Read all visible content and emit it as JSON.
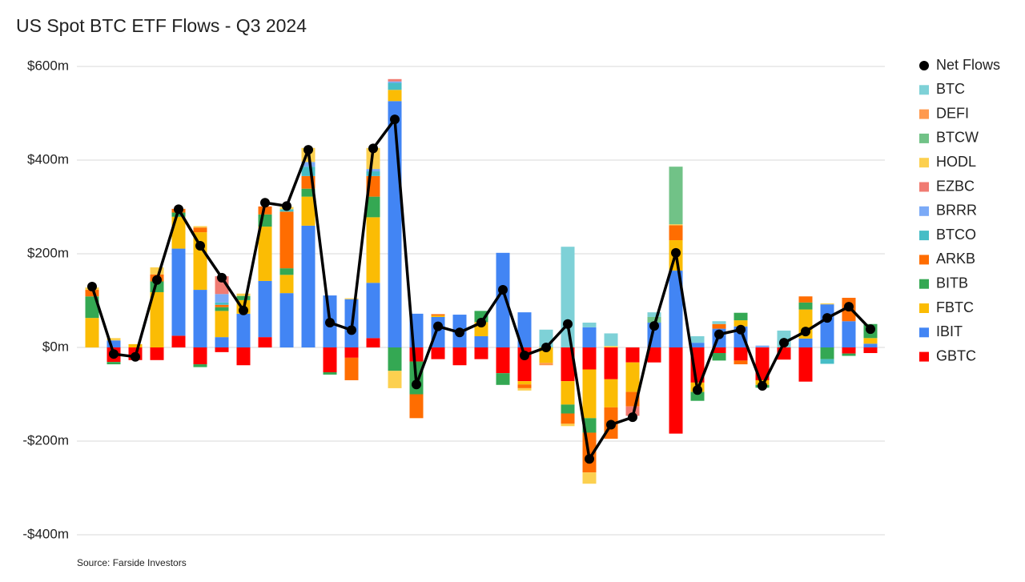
{
  "chart_data": {
    "type": "bar",
    "stacked": true,
    "title": "US Spot BTC ETF Flows - Q3 2024",
    "source": "Source: Farside Investors",
    "categories": [
      null,
      null,
      null,
      null,
      null,
      null,
      null,
      null,
      null,
      null,
      null,
      null,
      null,
      null,
      null,
      null,
      null,
      null,
      null,
      null,
      null,
      null,
      null,
      null,
      null,
      null,
      null,
      null,
      null,
      null,
      null,
      null,
      null,
      null,
      null,
      null,
      null
    ],
    "ylim": [
      -400,
      600
    ],
    "yticks": [
      {
        "value": 600,
        "label": "$600m"
      },
      {
        "value": 400,
        "label": "$400m"
      },
      {
        "value": 200,
        "label": "$200m"
      },
      {
        "value": 0,
        "label": "$0m"
      },
      {
        "value": -200,
        "label": "-$200m"
      },
      {
        "value": -400,
        "label": "-$400m"
      }
    ],
    "grid": true,
    "legend": "right",
    "series": [
      {
        "name": "GBTC",
        "color": "#ff0000",
        "values": [
          0,
          -31,
          -27,
          -27,
          25,
          -36,
          -10,
          -38,
          22,
          0,
          0,
          -53,
          -22,
          20,
          0,
          -30,
          -25,
          -38,
          -25,
          -55,
          -72,
          0,
          -72,
          -47,
          -68,
          -32,
          -32,
          -184,
          -75,
          -12,
          -28,
          -70,
          -26,
          -73,
          0,
          -13,
          -12
        ]
      },
      {
        "name": "IBIT",
        "color": "#4285f4",
        "values": [
          0,
          15,
          0,
          0,
          186,
          123,
          22,
          72,
          120,
          116,
          260,
          111,
          103,
          118,
          526,
          72,
          65,
          70,
          24,
          202,
          75,
          0,
          0,
          43,
          0,
          0,
          53,
          164,
          10,
          40,
          45,
          0,
          0,
          19,
          92,
          56,
          8
        ]
      },
      {
        "name": "FBTC",
        "color": "#fbbc04",
        "values": [
          63,
          0,
          7,
          118,
          68,
          123,
          56,
          29,
          116,
          39,
          62,
          0,
          0,
          140,
          24,
          0,
          3,
          0,
          30,
          0,
          -7,
          -33,
          -50,
          -104,
          -60,
          -63,
          0,
          65,
          -20,
          0,
          13,
          -10,
          0,
          62,
          0,
          0,
          12
        ]
      },
      {
        "name": "BITB",
        "color": "#34a853",
        "values": [
          46,
          -5,
          0,
          23,
          9,
          -6,
          8,
          9,
          26,
          14,
          17,
          -5,
          0,
          44,
          -50,
          -70,
          0,
          0,
          24,
          -25,
          0,
          0,
          -19,
          -31,
          0,
          0,
          0,
          0,
          -19,
          -16,
          16,
          -6,
          0,
          15,
          -25,
          -5,
          30
        ]
      },
      {
        "name": "ARKB",
        "color": "#ff6d01",
        "values": [
          14,
          0,
          0,
          15,
          8,
          10,
          5,
          0,
          17,
          121,
          27,
          0,
          -48,
          44,
          0,
          -51,
          3,
          0,
          0,
          0,
          -8,
          0,
          -22,
          -85,
          -67,
          -31,
          0,
          32,
          0,
          10,
          -8,
          0,
          0,
          13,
          0,
          50,
          0
        ]
      },
      {
        "name": "BTCO",
        "color": "#46bdc6",
        "values": [
          0,
          0,
          0,
          0,
          0,
          0,
          5,
          0,
          0,
          5,
          20,
          0,
          0,
          10,
          15,
          0,
          0,
          0,
          0,
          0,
          0,
          0,
          0,
          0,
          0,
          0,
          0,
          0,
          0,
          0,
          0,
          0,
          0,
          0,
          -10,
          0,
          0
        ]
      },
      {
        "name": "BRRR",
        "color": "#7baaf7",
        "values": [
          0,
          0,
          0,
          0,
          0,
          0,
          18,
          0,
          0,
          0,
          10,
          0,
          0,
          5,
          3,
          0,
          0,
          0,
          0,
          0,
          0,
          0,
          0,
          0,
          0,
          0,
          0,
          0,
          0,
          0,
          0,
          4,
          0,
          0,
          0,
          0,
          0
        ]
      },
      {
        "name": "EZBC",
        "color": "#f07b72",
        "values": [
          0,
          0,
          0,
          0,
          0,
          0,
          38,
          0,
          0,
          0,
          0,
          0,
          0,
          0,
          5,
          0,
          0,
          0,
          0,
          0,
          0,
          0,
          0,
          0,
          0,
          -20,
          0,
          0,
          0,
          0,
          0,
          0,
          0,
          0,
          0,
          0,
          0
        ]
      },
      {
        "name": "HODL",
        "color": "#fcd04f",
        "values": [
          5,
          5,
          0,
          15,
          0,
          3,
          0,
          5,
          0,
          5,
          30,
          0,
          2,
          45,
          -37,
          0,
          0,
          0,
          0,
          0,
          -5,
          0,
          -5,
          -24,
          3,
          0,
          0,
          2,
          0,
          0,
          0,
          0,
          0,
          0,
          2,
          0,
          0
        ]
      },
      {
        "name": "BTCW",
        "color": "#71c287",
        "values": [
          0,
          0,
          0,
          0,
          0,
          0,
          0,
          0,
          0,
          0,
          0,
          0,
          0,
          0,
          0,
          0,
          0,
          0,
          0,
          0,
          0,
          0,
          0,
          0,
          0,
          0,
          12,
          123,
          0,
          0,
          0,
          0,
          0,
          0,
          0,
          0,
          0
        ]
      },
      {
        "name": "DEFI",
        "color": "#ff994d",
        "values": [
          0,
          0,
          0,
          0,
          0,
          0,
          0,
          0,
          0,
          0,
          0,
          0,
          0,
          0,
          0,
          0,
          0,
          0,
          0,
          0,
          0,
          -5,
          0,
          0,
          0,
          0,
          0,
          0,
          0,
          0,
          0,
          0,
          0,
          0,
          0,
          0,
          0
        ]
      },
      {
        "name": "BTC",
        "color": "#7ed1d7",
        "values": [
          0,
          0,
          0,
          0,
          0,
          0,
          0,
          0,
          0,
          0,
          0,
          0,
          0,
          0,
          0,
          0,
          0,
          0,
          0,
          0,
          0,
          38,
          215,
          10,
          27,
          0,
          10,
          0,
          14,
          6,
          0,
          0,
          36,
          0,
          0,
          0,
          0
        ]
      }
    ],
    "line": {
      "name": "Net Flows",
      "color": "#000000",
      "values": [
        130,
        -14,
        -20,
        144,
        295,
        217,
        149,
        79,
        309,
        302,
        422,
        53,
        37,
        425,
        487,
        -79,
        45,
        32,
        53,
        123,
        -17,
        0,
        50,
        -238,
        -165,
        -149,
        46,
        202,
        -91,
        28,
        38,
        -82,
        10,
        34,
        63,
        87,
        39
      ]
    }
  }
}
